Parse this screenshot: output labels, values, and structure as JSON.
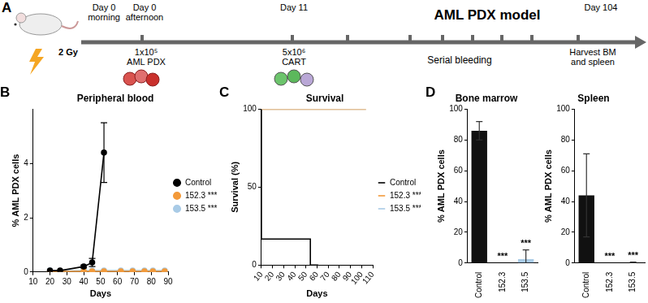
{
  "diagram": {
    "panel": "A",
    "title": "AML PDX model",
    "events": [
      {
        "top": [
          "Day 0",
          "morning"
        ],
        "bottom": [
          "2 Gy"
        ]
      },
      {
        "top": [
          "Day 0",
          "afternoon"
        ],
        "bottom": [
          "1x10⁵",
          "AML PDX"
        ]
      },
      {
        "top": [
          "Day 11"
        ],
        "bottom": [
          "5x10⁶",
          "CART"
        ]
      },
      {
        "bottom": [
          "Serial bleeding"
        ]
      },
      {
        "top": [
          "Day 104"
        ],
        "bottom": [
          "Harvest BM",
          "and spleen"
        ]
      }
    ]
  },
  "chart_data": [
    {
      "panel": "B",
      "type": "line",
      "title": "Peripheral blood",
      "x_label": "Days",
      "y_label": "% AML PDX cells",
      "xlim": [
        10,
        90
      ],
      "xticks": [
        10,
        20,
        30,
        40,
        50,
        60,
        70,
        80,
        90
      ],
      "ylim": [
        0,
        6
      ],
      "yticks": [
        0,
        2,
        4
      ],
      "grid": false,
      "legend": "right",
      "series": [
        {
          "name": "Control",
          "color": "#000000",
          "marker": "circle",
          "line_style": "solid",
          "x": [
            20,
            26,
            40,
            45,
            52
          ],
          "values": [
            0.05,
            0.05,
            0.2,
            0.35,
            4.4
          ],
          "errors": [
            0,
            0,
            0.05,
            0.15,
            1.1
          ]
        },
        {
          "name": "152.3 ***",
          "color": "#f39a3a",
          "marker": "circle",
          "line_style": "solid",
          "x": [
            20,
            26,
            40,
            45,
            52,
            62,
            69,
            76,
            81,
            88
          ],
          "values": [
            0.02,
            0.02,
            0.02,
            0.02,
            0.02,
            0.02,
            0.02,
            0.02,
            0.02,
            0.02
          ]
        },
        {
          "name": "153.5 ***",
          "color": "#a9cbe6",
          "marker": "circle",
          "line_style": "solid",
          "x": [
            20,
            26,
            40,
            45,
            52,
            62,
            69,
            76,
            81,
            88
          ],
          "values": [
            0.05,
            0.04,
            0.05,
            0.05,
            0.05,
            0.05,
            0.05,
            0.05,
            0.05,
            0.05
          ]
        }
      ]
    },
    {
      "panel": "C",
      "type": "line",
      "title": "Survival",
      "x_label": "Days",
      "y_label": "Survival (%)",
      "xlim": [
        10,
        110
      ],
      "xticks": [
        10,
        20,
        30,
        40,
        50,
        60,
        70,
        80,
        90,
        100,
        110
      ],
      "ylim": [
        0,
        100
      ],
      "yticks": [
        0,
        50,
        100
      ],
      "grid": false,
      "legend": "right",
      "series": [
        {
          "name": "Control",
          "color": "#000000",
          "marker": "none",
          "line_style": "step",
          "x": [
            10,
            54,
            61
          ],
          "values": [
            100,
            16.7,
            0
          ]
        },
        {
          "name": "152.3 ***",
          "color": "#f39a3a",
          "marker": "none",
          "line_style": "step",
          "x": [
            10,
            104
          ],
          "values": [
            100,
            100
          ]
        },
        {
          "name": "153.5 ***",
          "color": "#a9cbe6",
          "marker": "none",
          "line_style": "step",
          "x": [
            10,
            104
          ],
          "values": [
            100,
            100
          ]
        }
      ]
    },
    {
      "panel": "D",
      "type": "bar",
      "title": "Bone marrow",
      "y_label": "% AML PDX cells",
      "categories": [
        "Control",
        "152.3",
        "153.5"
      ],
      "values": [
        86,
        0,
        2.5
      ],
      "errors": [
        6,
        0,
        6
      ],
      "colors": [
        "#111111",
        "#f39a3a",
        "#a9cbe6"
      ],
      "annotations": [
        null,
        "***",
        "***"
      ],
      "ylim": [
        0,
        100
      ],
      "yticks": [
        0,
        20,
        40,
        60,
        80,
        100
      ],
      "grid": false
    },
    {
      "type": "bar",
      "title": "Spleen",
      "y_label": "% AML PDX cells",
      "categories": [
        "Control",
        "152.3",
        "153.5"
      ],
      "values": [
        44,
        0,
        0.3
      ],
      "errors": [
        27,
        0,
        0.3
      ],
      "colors": [
        "#111111",
        "#f39a3a",
        "#a9cbe6"
      ],
      "annotations": [
        null,
        "***",
        "***"
      ],
      "ylim": [
        0,
        100
      ],
      "yticks": [
        0,
        20,
        40,
        60,
        80,
        100
      ],
      "grid": false
    }
  ]
}
